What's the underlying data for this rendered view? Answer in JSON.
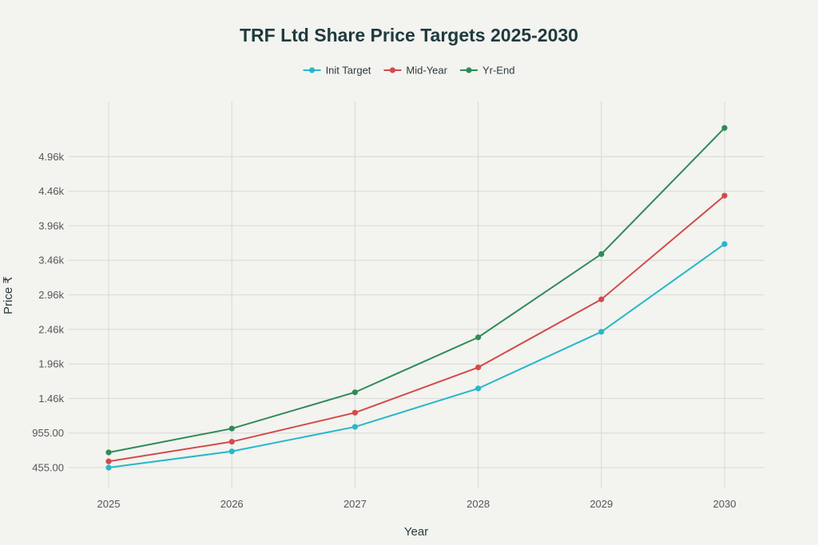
{
  "chart_data": {
    "type": "line",
    "title": "TRF Ltd Share Price Targets 2025-2030",
    "xlabel": "Year",
    "ylabel": "Price ₹",
    "categories": [
      "2025",
      "2026",
      "2027",
      "2028",
      "2029",
      "2030"
    ],
    "y_ticks": [
      {
        "value": 455,
        "label": "455.00"
      },
      {
        "value": 955,
        "label": "955.00"
      },
      {
        "value": 1455,
        "label": "1.46k"
      },
      {
        "value": 1955,
        "label": "1.96k"
      },
      {
        "value": 2455,
        "label": "2.46k"
      },
      {
        "value": 2955,
        "label": "2.96k"
      },
      {
        "value": 3455,
        "label": "3.46k"
      },
      {
        "value": 3955,
        "label": "3.96k"
      },
      {
        "value": 4455,
        "label": "4.46k"
      },
      {
        "value": 4955,
        "label": "4.96k"
      }
    ],
    "ylim": [
      155,
      5755
    ],
    "grid": true,
    "legend_position": "top",
    "series": [
      {
        "name": "Init Target",
        "color": "#26b8c9",
        "values": [
          455,
          690,
          1045,
          1600,
          2420,
          3690
        ]
      },
      {
        "name": "Mid-Year",
        "color": "#d24b4b",
        "values": [
          545,
          830,
          1250,
          1905,
          2890,
          4390
        ]
      },
      {
        "name": "Yr-End",
        "color": "#2e8b57",
        "values": [
          675,
          1020,
          1545,
          2340,
          3545,
          5370
        ]
      }
    ]
  }
}
